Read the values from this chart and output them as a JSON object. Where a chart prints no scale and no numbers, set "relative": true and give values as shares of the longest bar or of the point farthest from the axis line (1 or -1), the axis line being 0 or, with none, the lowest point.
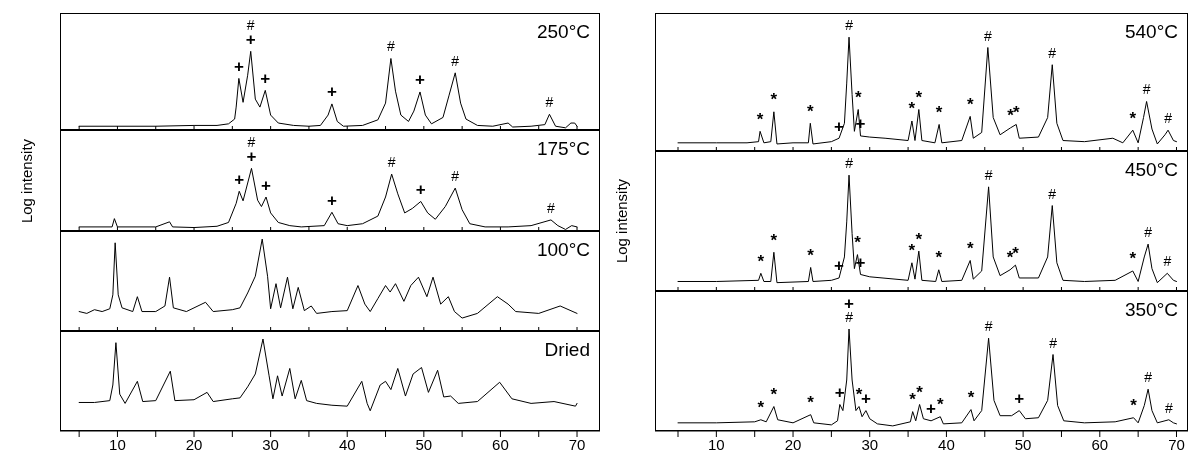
{
  "chart_data": [
    {
      "type": "line",
      "title": "250°C",
      "relative": true,
      "xlim": [
        2.5,
        73
      ],
      "xticks": [
        {
          "value": 5,
          "label": null
        },
        10,
        {
          "value": 15,
          "label": null
        },
        20,
        {
          "value": 25,
          "label": null
        },
        30,
        {
          "value": 35,
          "label": null
        },
        40,
        {
          "value": 45,
          "label": null
        },
        50,
        {
          "value": 55,
          "label": null
        },
        60,
        {
          "value": 65,
          "label": null
        },
        70
      ],
      "tick_labels": false,
      "x": [
        5,
        10,
        15,
        20,
        23,
        24.5,
        25.3,
        25.5,
        25.85,
        26.4,
        27.0,
        27.4,
        28.0,
        28.6,
        29.3,
        30,
        31,
        33,
        35,
        36.5,
        37.5,
        38.0,
        38.7,
        39.5,
        42,
        44,
        45,
        45.7,
        46.3,
        47,
        48,
        48.7,
        49.5,
        50.2,
        51,
        52.5,
        53.3,
        54.1,
        54.8,
        55.5,
        57,
        59,
        61.0,
        61.6,
        64,
        65.8,
        66.4,
        67.2,
        68.5,
        69.2,
        69.7,
        70
      ],
      "series": [
        {
          "color": "#000000",
          "values": [
            0.06,
            0.06,
            0.06,
            0.07,
            0.07,
            0.09,
            0.15,
            0.3,
            0.66,
            0.36,
            0.7,
            1.0,
            0.4,
            0.3,
            0.51,
            0.2,
            0.1,
            0.07,
            0.06,
            0.07,
            0.2,
            0.34,
            0.12,
            0.06,
            0.07,
            0.14,
            0.35,
            0.91,
            0.5,
            0.2,
            0.12,
            0.25,
            0.49,
            0.2,
            0.09,
            0.17,
            0.45,
            0.73,
            0.35,
            0.15,
            0.07,
            0.06,
            0.1,
            0.05,
            0.06,
            0.08,
            0.21,
            0.06,
            0.04,
            0.1,
            0.1,
            0.06
          ]
        }
      ],
      "annotations": [
        {
          "text": "+",
          "x": 25.85,
          "y": 0.66
        },
        {
          "text": "+",
          "x": 27.4,
          "y": 1.0
        },
        {
          "text": "#",
          "x": 27.4,
          "y": 1.0
        },
        {
          "text": "+",
          "x": 29.3,
          "y": 0.51
        },
        {
          "text": "+",
          "x": 38.0,
          "y": 0.34
        },
        {
          "text": "#",
          "x": 45.7,
          "y": 0.91
        },
        {
          "text": "+",
          "x": 49.5,
          "y": 0.49
        },
        {
          "text": "#",
          "x": 54.1,
          "y": 0.73
        },
        {
          "text": "#",
          "x": 66.4,
          "y": 0.21
        }
      ]
    },
    {
      "type": "line",
      "title": "175°C",
      "ylabel": "Log intensity",
      "relative": true,
      "xlim": [
        2.5,
        73
      ],
      "xticks": [
        {
          "value": 5,
          "label": null
        },
        10,
        {
          "value": 15,
          "label": null
        },
        20,
        {
          "value": 25,
          "label": null
        },
        30,
        {
          "value": 35,
          "label": null
        },
        40,
        {
          "value": 45,
          "label": null
        },
        50,
        {
          "value": 55,
          "label": null
        },
        60,
        {
          "value": 65,
          "label": null
        },
        70
      ],
      "tick_labels": false,
      "x": [
        5,
        9.3,
        9.6,
        10,
        15,
        16.8,
        17.2,
        20,
        23,
        24.5,
        25.5,
        25.9,
        26.4,
        27.5,
        28.3,
        28.8,
        29.4,
        30,
        31,
        32.5,
        34,
        37,
        38.0,
        38.8,
        40,
        42,
        44,
        45,
        45.8,
        46.6,
        47.5,
        48.5,
        49.6,
        50.5,
        51.5,
        52.8,
        54.1,
        55,
        56,
        58,
        61,
        64,
        66.6,
        67.5,
        68.5,
        69.3,
        70
      ],
      "series": [
        {
          "color": "#000000",
          "values": [
            0.08,
            0.08,
            0.21,
            0.08,
            0.08,
            0.16,
            0.08,
            0.07,
            0.09,
            0.15,
            0.45,
            0.64,
            0.49,
            1.0,
            0.5,
            0.4,
            0.55,
            0.3,
            0.15,
            0.1,
            0.08,
            0.1,
            0.31,
            0.13,
            0.1,
            0.13,
            0.25,
            0.55,
            0.91,
            0.6,
            0.3,
            0.37,
            0.48,
            0.3,
            0.2,
            0.4,
            0.69,
            0.35,
            0.13,
            0.08,
            0.08,
            0.1,
            0.19,
            0.1,
            0.04,
            0.1,
            0.08
          ]
        }
      ],
      "annotations": [
        {
          "text": "+",
          "x": 25.9,
          "y": 0.64
        },
        {
          "text": "+",
          "x": 27.5,
          "y": 1.0
        },
        {
          "text": "#",
          "x": 27.5,
          "y": 1.0
        },
        {
          "text": "+",
          "x": 29.4,
          "y": 0.55
        },
        {
          "text": "+",
          "x": 38.0,
          "y": 0.31
        },
        {
          "text": "#",
          "x": 45.8,
          "y": 0.91
        },
        {
          "text": "+",
          "x": 49.6,
          "y": 0.48
        },
        {
          "text": "#",
          "x": 54.1,
          "y": 0.69
        },
        {
          "text": "#",
          "x": 66.6,
          "y": 0.19
        }
      ]
    },
    {
      "type": "line",
      "title": "100°C",
      "relative": true,
      "xlim": [
        2.5,
        73
      ],
      "xticks": [
        {
          "value": 5,
          "label": null
        },
        10,
        {
          "value": 15,
          "label": null
        },
        20,
        {
          "value": 25,
          "label": null
        },
        30,
        {
          "value": 35,
          "label": null
        },
        40,
        {
          "value": 45,
          "label": null
        },
        50,
        {
          "value": 55,
          "label": null
        },
        60,
        {
          "value": 65,
          "label": null
        },
        70
      ],
      "tick_labels": false,
      "x": [
        5,
        6,
        7,
        8,
        9,
        9.4,
        9.7,
        10.1,
        10.6,
        12,
        12.6,
        13.2,
        15,
        16.2,
        16.8,
        17.3,
        19,
        21.5,
        22.5,
        25,
        26,
        27,
        28,
        28.9,
        29.6,
        30,
        30.7,
        31.3,
        32.2,
        32.9,
        33.6,
        34.4,
        35.3,
        36,
        38,
        40,
        41.4,
        42.3,
        43,
        44,
        45,
        45.6,
        46.3,
        47.4,
        48.3,
        49.3,
        50.4,
        51.2,
        52.2,
        53.2,
        54,
        55,
        57,
        59.6,
        61,
        62,
        65,
        67.8,
        70
      ],
      "series": [
        {
          "color": "#000000",
          "values": [
            0.22,
            0.2,
            0.24,
            0.22,
            0.25,
            0.4,
            0.96,
            0.4,
            0.26,
            0.22,
            0.38,
            0.22,
            0.22,
            0.28,
            0.59,
            0.26,
            0.22,
            0.32,
            0.22,
            0.24,
            0.26,
            0.42,
            0.6,
            1.0,
            0.6,
            0.25,
            0.52,
            0.26,
            0.59,
            0.25,
            0.48,
            0.23,
            0.28,
            0.2,
            0.22,
            0.23,
            0.5,
            0.3,
            0.22,
            0.36,
            0.5,
            0.43,
            0.52,
            0.33,
            0.5,
            0.59,
            0.38,
            0.59,
            0.3,
            0.38,
            0.22,
            0.15,
            0.2,
            0.38,
            0.3,
            0.22,
            0.2,
            0.28,
            0.2
          ]
        }
      ]
    },
    {
      "type": "line",
      "title": "Dried",
      "relative": true,
      "xlim": [
        2.5,
        73
      ],
      "xticks": [
        {
          "value": 5,
          "label": null
        },
        10,
        {
          "value": 15,
          "label": null
        },
        20,
        {
          "value": 25,
          "label": null
        },
        30,
        {
          "value": 35,
          "label": null
        },
        40,
        {
          "value": 45,
          "label": null
        },
        50,
        {
          "value": 55,
          "label": null
        },
        60,
        {
          "value": 65,
          "label": null
        },
        70
      ],
      "tick_labels": "x",
      "x": [
        5,
        7,
        9,
        9.4,
        9.8,
        10.3,
        11,
        12.6,
        13.3,
        15,
        16.9,
        17.5,
        20,
        21.7,
        22.5,
        25,
        26,
        27,
        28,
        29,
        29.8,
        30.3,
        30.9,
        31.5,
        32.5,
        33.2,
        34,
        34.7,
        36,
        38,
        40,
        41.9,
        42.6,
        43,
        44.3,
        45,
        45.7,
        46.6,
        47.6,
        48.6,
        49.7,
        50.6,
        51.8,
        52.6,
        53.5,
        54.5,
        57,
        59.9,
        61.5,
        64,
        67,
        69.8,
        70
      ],
      "series": [
        {
          "color": "#000000",
          "values": [
            0.31,
            0.31,
            0.33,
            0.5,
            0.96,
            0.4,
            0.3,
            0.54,
            0.32,
            0.33,
            0.65,
            0.33,
            0.34,
            0.42,
            0.32,
            0.35,
            0.36,
            0.48,
            0.62,
            1.0,
            0.6,
            0.35,
            0.6,
            0.38,
            0.68,
            0.35,
            0.55,
            0.33,
            0.3,
            0.28,
            0.27,
            0.54,
            0.3,
            0.22,
            0.5,
            0.54,
            0.45,
            0.68,
            0.38,
            0.62,
            0.69,
            0.42,
            0.66,
            0.37,
            0.38,
            0.3,
            0.32,
            0.53,
            0.35,
            0.3,
            0.32,
            0.27,
            0.3
          ]
        }
      ]
    },
    {
      "type": "line",
      "title": "540°C",
      "relative": true,
      "xlim": [
        2,
        71.5
      ],
      "xticks": [
        {
          "value": 5,
          "label": null
        },
        10,
        {
          "value": 15,
          "label": null
        },
        20,
        {
          "value": 25,
          "label": null
        },
        30,
        {
          "value": 35,
          "label": null
        },
        40,
        {
          "value": 45,
          "label": null
        },
        50,
        {
          "value": 55,
          "label": null
        },
        60,
        {
          "value": 65,
          "label": null
        },
        70
      ],
      "tick_labels": false,
      "x": [
        5,
        10,
        14,
        15.5,
        15.7,
        16.2,
        17.1,
        17.5,
        17.9,
        20,
        22.0,
        22.25,
        22.6,
        25,
        26,
        26.7,
        27.0,
        27.3,
        27.7,
        28.0,
        28.5,
        28.8,
        30,
        32,
        35,
        35.5,
        35.9,
        36.4,
        36.8,
        38.5,
        39.05,
        39.4,
        42,
        43.1,
        43.5,
        44.6,
        45.4,
        46.1,
        47,
        48.35,
        49.1,
        49.5,
        52,
        53.2,
        53.8,
        54.4,
        55.2,
        58,
        61.7,
        63,
        64.3,
        65,
        65.7,
        66.1,
        66.8,
        67.5,
        68.5,
        68.9,
        69.6,
        70
      ],
      "series": [
        {
          "color": "#000000",
          "values": [
            0.08,
            0.08,
            0.08,
            0.09,
            0.18,
            0.08,
            0.09,
            0.35,
            0.07,
            0.08,
            0.08,
            0.25,
            0.07,
            0.09,
            0.12,
            0.25,
            0.6,
            1.0,
            0.5,
            0.18,
            0.37,
            0.14,
            0.13,
            0.12,
            0.1,
            0.27,
            0.1,
            0.37,
            0.1,
            0.08,
            0.24,
            0.08,
            0.1,
            0.31,
            0.12,
            0.17,
            0.91,
            0.3,
            0.15,
            0.21,
            0.24,
            0.12,
            0.13,
            0.3,
            0.76,
            0.25,
            0.1,
            0.09,
            0.12,
            0.08,
            0.19,
            0.08,
            0.3,
            0.44,
            0.2,
            0.07,
            0.15,
            0.19,
            0.1,
            0.09
          ]
        }
      ],
      "annotations": [
        {
          "text": "*",
          "x": 15.7,
          "y": 0.18
        },
        {
          "text": "*",
          "x": 17.5,
          "y": 0.35
        },
        {
          "text": "*",
          "x": 22.25,
          "y": 0.25
        },
        {
          "text": "+",
          "x": 26,
          "y": 0.12
        },
        {
          "text": "#",
          "x": 27.3,
          "y": 1.0
        },
        {
          "text": "*",
          "x": 28.5,
          "y": 0.37
        },
        {
          "text": "+",
          "x": 28.8,
          "y": 0.14
        },
        {
          "text": "*",
          "x": 35.5,
          "y": 0.27
        },
        {
          "text": "*",
          "x": 36.4,
          "y": 0.37
        },
        {
          "text": "*",
          "x": 39.05,
          "y": 0.24
        },
        {
          "text": "*",
          "x": 43.1,
          "y": 0.31
        },
        {
          "text": "#",
          "x": 45.4,
          "y": 0.91
        },
        {
          "text": "*",
          "x": 48.35,
          "y": 0.21
        },
        {
          "text": "*",
          "x": 49.1,
          "y": 0.24
        },
        {
          "text": "#",
          "x": 53.8,
          "y": 0.76
        },
        {
          "text": "*",
          "x": 64.3,
          "y": 0.19
        },
        {
          "text": "#",
          "x": 66.1,
          "y": 0.44
        },
        {
          "text": "#",
          "x": 68.9,
          "y": 0.19
        }
      ]
    },
    {
      "type": "line",
      "title": "450°C",
      "ylabel": "Log intensity",
      "relative": true,
      "xlim": [
        2,
        71.5
      ],
      "xticks": [
        {
          "value": 5,
          "label": null
        },
        10,
        {
          "value": 15,
          "label": null
        },
        20,
        {
          "value": 25,
          "label": null
        },
        30,
        {
          "value": 35,
          "label": null
        },
        40,
        {
          "value": 45,
          "label": null
        },
        50,
        {
          "value": 55,
          "label": null
        },
        60,
        {
          "value": 65,
          "label": null
        },
        70
      ],
      "tick_labels": false,
      "x": [
        5,
        10,
        15.5,
        15.8,
        16.2,
        17.1,
        17.5,
        17.9,
        22.0,
        22.3,
        22.6,
        25,
        26,
        26.7,
        27.0,
        27.3,
        27.7,
        28.0,
        28.4,
        28.8,
        30,
        35,
        35.5,
        35.9,
        36.4,
        36.8,
        38.6,
        39.0,
        39.4,
        42,
        43.1,
        43.5,
        44.6,
        45.5,
        46.1,
        47,
        48.3,
        49.0,
        49.5,
        52,
        53.2,
        53.8,
        54.4,
        55.2,
        58,
        62,
        64.3,
        65,
        65.8,
        66.3,
        66.8,
        67.5,
        68.8,
        69.6,
        70
      ],
      "series": [
        {
          "color": "#000000",
          "values": [
            0.09,
            0.09,
            0.1,
            0.16,
            0.09,
            0.09,
            0.34,
            0.08,
            0.09,
            0.21,
            0.09,
            0.1,
            0.12,
            0.3,
            0.6,
            1.0,
            0.5,
            0.2,
            0.32,
            0.15,
            0.13,
            0.1,
            0.25,
            0.11,
            0.35,
            0.1,
            0.09,
            0.19,
            0.09,
            0.1,
            0.27,
            0.11,
            0.18,
            0.9,
            0.3,
            0.14,
            0.19,
            0.23,
            0.12,
            0.12,
            0.3,
            0.74,
            0.25,
            0.1,
            0.09,
            0.1,
            0.18,
            0.09,
            0.3,
            0.41,
            0.2,
            0.08,
            0.16,
            0.1,
            0.09
          ]
        }
      ],
      "annotations": [
        {
          "text": "*",
          "x": 15.8,
          "y": 0.16
        },
        {
          "text": "*",
          "x": 17.5,
          "y": 0.34
        },
        {
          "text": "*",
          "x": 22.3,
          "y": 0.21
        },
        {
          "text": "+",
          "x": 26,
          "y": 0.12
        },
        {
          "text": "#",
          "x": 27.3,
          "y": 1.0
        },
        {
          "text": "*",
          "x": 28.4,
          "y": 0.32
        },
        {
          "text": "+",
          "x": 28.8,
          "y": 0.15
        },
        {
          "text": "*",
          "x": 35.5,
          "y": 0.25
        },
        {
          "text": "*",
          "x": 36.4,
          "y": 0.35
        },
        {
          "text": "*",
          "x": 39.0,
          "y": 0.19
        },
        {
          "text": "*",
          "x": 43.1,
          "y": 0.27
        },
        {
          "text": "#",
          "x": 45.5,
          "y": 0.9
        },
        {
          "text": "*",
          "x": 48.3,
          "y": 0.19
        },
        {
          "text": "*",
          "x": 49.0,
          "y": 0.23
        },
        {
          "text": "#",
          "x": 53.8,
          "y": 0.74
        },
        {
          "text": "*",
          "x": 64.3,
          "y": 0.18
        },
        {
          "text": "#",
          "x": 66.3,
          "y": 0.41
        },
        {
          "text": "#",
          "x": 68.8,
          "y": 0.16
        }
      ]
    },
    {
      "type": "line",
      "title": "350°C",
      "relative": true,
      "xlim": [
        2,
        71.5
      ],
      "xticks": [
        {
          "value": 5,
          "label": null
        },
        10,
        {
          "value": 15,
          "label": null
        },
        20,
        {
          "value": 25,
          "label": null
        },
        30,
        {
          "value": 35,
          "label": null
        },
        40,
        {
          "value": 45,
          "label": null
        },
        50,
        {
          "value": 55,
          "label": null
        },
        60,
        {
          "value": 65,
          "label": null
        },
        70
      ],
      "tick_labels": "x",
      "x": [
        5,
        10,
        15,
        15.8,
        16.5,
        17.5,
        18,
        20,
        22.3,
        22.7,
        25,
        25.8,
        26.1,
        26.5,
        27.0,
        27.3,
        27.7,
        28.2,
        28.6,
        29.0,
        29.5,
        30,
        31,
        33,
        35.3,
        35.6,
        36.0,
        36.5,
        37,
        38,
        39.2,
        39.6,
        42,
        43.2,
        43.6,
        44.6,
        45.5,
        46.2,
        47,
        48.5,
        49.5,
        50.3,
        52,
        53.2,
        53.9,
        54.5,
        55.3,
        58,
        62,
        64.4,
        65,
        65.8,
        66.3,
        66.8,
        67.5,
        69.0,
        69.6,
        70
      ],
      "series": [
        {
          "color": "#000000",
          "values": [
            0.08,
            0.08,
            0.09,
            0.11,
            0.09,
            0.24,
            0.11,
            0.08,
            0.16,
            0.08,
            0.06,
            0.1,
            0.26,
            0.2,
            0.5,
            1.0,
            0.5,
            0.2,
            0.24,
            0.14,
            0.2,
            0.12,
            0.07,
            0.05,
            0.09,
            0.19,
            0.1,
            0.26,
            0.12,
            0.1,
            0.14,
            0.07,
            0.08,
            0.21,
            0.1,
            0.2,
            0.91,
            0.3,
            0.15,
            0.15,
            0.2,
            0.12,
            0.13,
            0.3,
            0.75,
            0.25,
            0.1,
            0.08,
            0.09,
            0.13,
            0.08,
            0.25,
            0.41,
            0.2,
            0.08,
            0.11,
            0.08,
            0.07
          ]
        }
      ],
      "annotations": [
        {
          "text": "*",
          "x": 15.8,
          "y": 0.11
        },
        {
          "text": "*",
          "x": 17.5,
          "y": 0.24
        },
        {
          "text": "*",
          "x": 22.3,
          "y": 0.16
        },
        {
          "text": "+",
          "x": 26.1,
          "y": 0.26
        },
        {
          "text": "#",
          "x": 27.3,
          "y": 1.0
        },
        {
          "text": "+",
          "x": 27.3,
          "y": 1.0
        },
        {
          "text": "*",
          "x": 28.6,
          "y": 0.24
        },
        {
          "text": "+",
          "x": 29.5,
          "y": 0.2
        },
        {
          "text": "*",
          "x": 35.6,
          "y": 0.19
        },
        {
          "text": "*",
          "x": 36.5,
          "y": 0.26
        },
        {
          "text": "+",
          "x": 38,
          "y": 0.1
        },
        {
          "text": "*",
          "x": 39.2,
          "y": 0.14
        },
        {
          "text": "*",
          "x": 43.2,
          "y": 0.21
        },
        {
          "text": "#",
          "x": 45.5,
          "y": 0.91
        },
        {
          "text": "+",
          "x": 49.5,
          "y": 0.2
        },
        {
          "text": "#",
          "x": 53.9,
          "y": 0.75
        },
        {
          "text": "*",
          "x": 64.4,
          "y": 0.13
        },
        {
          "text": "#",
          "x": 66.3,
          "y": 0.41
        },
        {
          "text": "#",
          "x": 69.0,
          "y": 0.11
        }
      ]
    }
  ]
}
